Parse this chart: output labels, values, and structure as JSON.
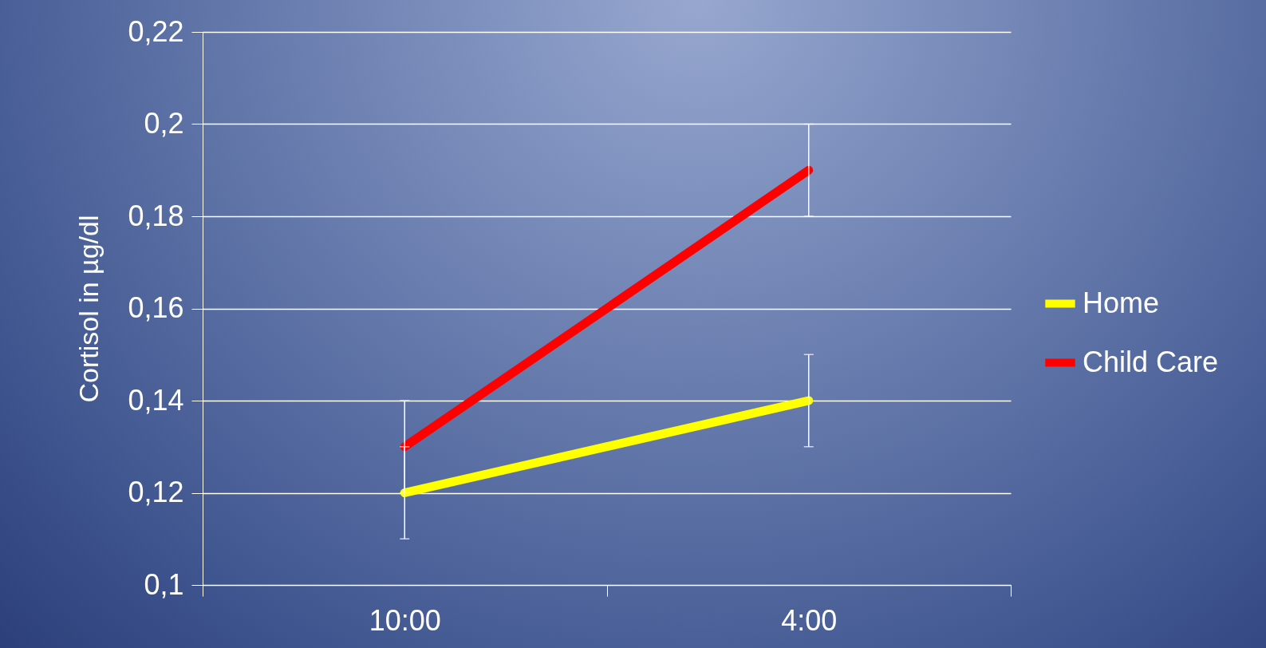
{
  "chart_data": {
    "type": "line",
    "ylabel": "Cortisol in µg/dl",
    "categories": [
      "10:00",
      "4:00"
    ],
    "series": [
      {
        "name": "Home",
        "color": "#ffff00",
        "values": [
          0.12,
          0.14
        ],
        "errors": [
          0.01,
          0.01
        ]
      },
      {
        "name": "Child Care",
        "color": "#ff0000",
        "values": [
          0.13,
          0.19
        ],
        "errors": [
          0.01,
          0.01
        ]
      }
    ],
    "ylim": [
      0.1,
      0.22
    ],
    "yticks": [
      {
        "value": 0.1,
        "label": "0,1"
      },
      {
        "value": 0.12,
        "label": "0,12"
      },
      {
        "value": 0.14,
        "label": "0,14"
      },
      {
        "value": 0.16,
        "label": "0,16"
      },
      {
        "value": 0.18,
        "label": "0,18"
      },
      {
        "value": 0.2,
        "label": "0,2"
      },
      {
        "value": 0.22,
        "label": "0,22"
      }
    ],
    "grid": "y",
    "legend": "right",
    "line_style": "solid"
  }
}
